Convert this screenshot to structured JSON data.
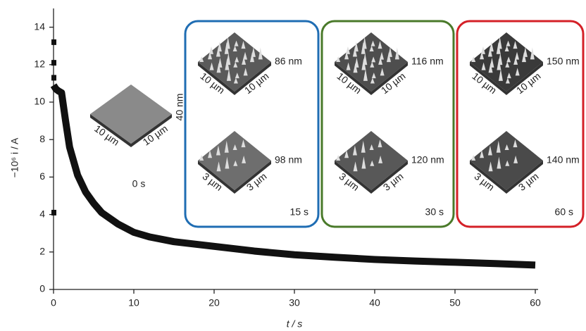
{
  "chart_data": {
    "type": "line",
    "x_label": "t / s",
    "y_label": "−10⁶ i / A",
    "xlim": [
      0,
      60
    ],
    "xticks": [
      0,
      10,
      20,
      30,
      40,
      50,
      60
    ],
    "ylim": [
      0,
      15
    ],
    "yticks": [
      0,
      2,
      4,
      6,
      8,
      10,
      12,
      14
    ],
    "series": [
      {
        "color": "#111111",
        "x": [
          0,
          0.3,
          0.6,
          1,
          1.5,
          2,
          3,
          4,
          5,
          6,
          8,
          10,
          12,
          15,
          20,
          25,
          30,
          35,
          40,
          45,
          50,
          55,
          60
        ],
        "values": [
          10.9,
          10.7,
          10.6,
          10.5,
          9.0,
          7.6,
          6.1,
          5.2,
          4.6,
          4.1,
          3.5,
          3.05,
          2.8,
          2.55,
          2.3,
          2.05,
          1.85,
          1.72,
          1.6,
          1.52,
          1.45,
          1.38,
          1.3
        ]
      },
      {
        "color": "#111111",
        "x": [
          0,
          0,
          0,
          0
        ],
        "values": [
          13.2,
          12.1,
          11.3,
          4.1
        ]
      }
    ],
    "insets": [
      {
        "time": "0 s",
        "images": [
          {
            "height": "40 nm",
            "x_label": "10 µm",
            "y_label": "10 µm"
          }
        ]
      },
      {
        "time": "15 s",
        "color": "#1f6db3",
        "images": [
          {
            "height": "86 nm",
            "x_label": "10 µm",
            "y_label": "10 µm"
          },
          {
            "height": "98 nm",
            "x_label": "3 µm",
            "y_label": "3 µm"
          }
        ]
      },
      {
        "time": "30 s",
        "color": "#4a7a2a",
        "images": [
          {
            "height": "116 nm",
            "x_label": "10 µm",
            "y_label": "10 µm"
          },
          {
            "height": "120 nm",
            "x_label": "3 µm",
            "y_label": "3 µm"
          }
        ]
      },
      {
        "time": "60 s",
        "color": "#d42027",
        "images": [
          {
            "height": "150 nm",
            "x_label": "10 µm",
            "y_label": "10 µm"
          },
          {
            "height": "140 nm",
            "x_label": "3 µm",
            "y_label": "3 µm"
          }
        ]
      }
    ]
  }
}
